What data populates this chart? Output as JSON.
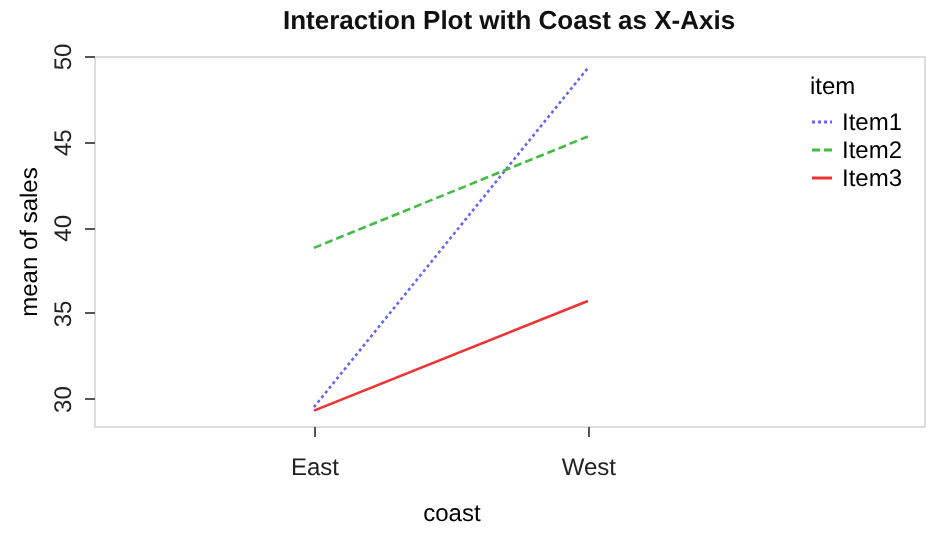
{
  "chart_data": {
    "type": "line",
    "title": "Interaction Plot with Coast as X-Axis",
    "xlabel": "coast",
    "ylabel": "mean of  sales",
    "legend_title": "item",
    "categories": [
      "East",
      "West"
    ],
    "series": [
      {
        "name": "Item1",
        "color": "#6666ee",
        "line_style": "dotted",
        "values": [
          29.5,
          49.3
        ]
      },
      {
        "name": "Item2",
        "color": "#44bb44",
        "line_style": "dashed",
        "values": [
          38.8,
          45.3
        ]
      },
      {
        "name": "Item3",
        "color": "#ee3333",
        "line_style": "solid",
        "values": [
          29.3,
          35.7
        ]
      }
    ],
    "ylim": [
      28.4,
      50
    ],
    "yticks": [
      30,
      35,
      40,
      45,
      50
    ],
    "grid": false,
    "legend": "top right",
    "marker": "none"
  }
}
